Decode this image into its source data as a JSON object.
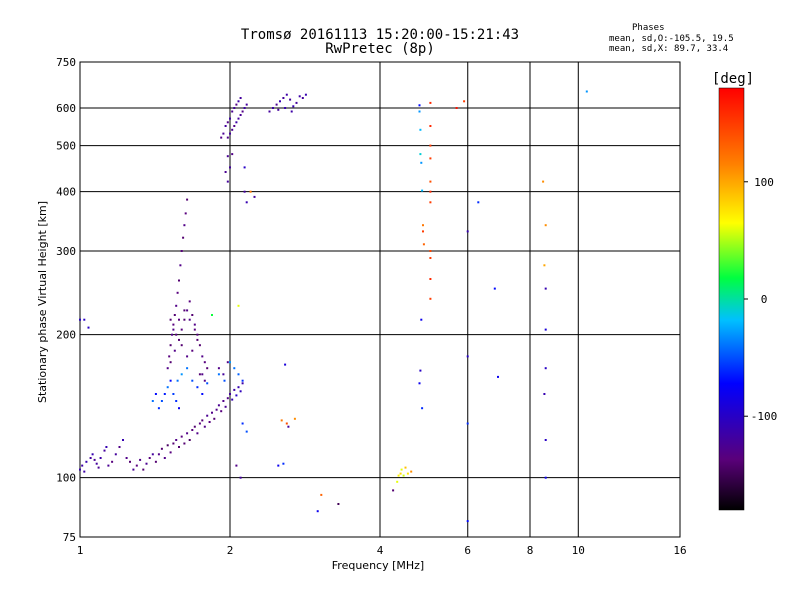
{
  "header": {
    "title": "Tromsø 20161113 15:20:00-15:21:43",
    "subtitle": "RwPretec (8p)"
  },
  "phases": {
    "heading": "Phases",
    "line_o": "mean, sd,O:-105.5, 19.5",
    "line_x": "mean, sd,X: 89.7, 33.4"
  },
  "chart_data": {
    "type": "scatter",
    "title": "Tromsø 20161113 15:20:00-15:21:43",
    "subtitle": "RwPretec (8p)",
    "xlabel": "Frequency [MHz]",
    "ylabel": "Stationary phase Virtual Height [km]",
    "xscale": "log",
    "yscale": "log",
    "xlim": [
      1,
      16
    ],
    "ylim": [
      75,
      750
    ],
    "xticks": [
      1,
      2,
      4,
      6,
      8,
      10,
      16
    ],
    "xtick_labels": [
      "1",
      "2",
      "4",
      "6",
      "8",
      "10",
      "16"
    ],
    "yticks": [
      75,
      100,
      200,
      300,
      400,
      500,
      600,
      750
    ],
    "ytick_labels": [
      "75",
      "100",
      "200",
      "300",
      "400",
      "500",
      "600",
      "750"
    ],
    "grid": true,
    "colorbar": {
      "label": "[deg]",
      "min": -180,
      "max": 180,
      "ticks": [
        100,
        0,
        -100
      ],
      "tick_labels": [
        "100",
        "0",
        "-100"
      ]
    },
    "colors": {
      "background": "#ffffff",
      "grid": "#000000"
    },
    "points": [
      [
        1.0,
        215,
        -100
      ],
      [
        1.02,
        215,
        -100
      ],
      [
        1.04,
        207,
        -100
      ],
      [
        1.0,
        104,
        -110
      ],
      [
        1.01,
        106,
        -115
      ],
      [
        1.02,
        103,
        -115
      ],
      [
        1.03,
        108,
        -110
      ],
      [
        1.05,
        110,
        -120
      ],
      [
        1.06,
        112,
        -110
      ],
      [
        1.07,
        109,
        -125
      ],
      [
        1.08,
        107,
        -120
      ],
      [
        1.09,
        105,
        -125
      ],
      [
        1.1,
        110,
        -115
      ],
      [
        1.12,
        114,
        -120
      ],
      [
        1.13,
        116,
        -110
      ],
      [
        1.14,
        106,
        -125
      ],
      [
        1.16,
        108,
        -135
      ],
      [
        1.18,
        112,
        -120
      ],
      [
        1.2,
        116,
        -130
      ],
      [
        1.22,
        120,
        -110
      ],
      [
        1.24,
        110,
        -130
      ],
      [
        1.26,
        108,
        -140
      ],
      [
        1.28,
        104,
        -125
      ],
      [
        1.3,
        106,
        -135
      ],
      [
        1.32,
        109,
        -130
      ],
      [
        1.34,
        104,
        -140
      ],
      [
        1.36,
        107,
        -125
      ],
      [
        1.38,
        110,
        -135
      ],
      [
        1.4,
        112,
        -120
      ],
      [
        1.42,
        108,
        -140
      ],
      [
        1.44,
        112,
        -130
      ],
      [
        1.46,
        115,
        -140
      ],
      [
        1.48,
        110,
        -130
      ],
      [
        1.5,
        117,
        -145
      ],
      [
        1.52,
        113,
        -135
      ],
      [
        1.54,
        118,
        -140
      ],
      [
        1.56,
        120,
        -130
      ],
      [
        1.58,
        116,
        -140
      ],
      [
        1.6,
        122,
        -135
      ],
      [
        1.62,
        118,
        -140
      ],
      [
        1.64,
        124,
        -130
      ],
      [
        1.66,
        120,
        -145
      ],
      [
        1.68,
        126,
        -135
      ],
      [
        1.7,
        128,
        -140
      ],
      [
        1.72,
        124,
        -130
      ],
      [
        1.74,
        130,
        -135
      ],
      [
        1.76,
        132,
        -140
      ],
      [
        1.78,
        128,
        -130
      ],
      [
        1.8,
        135,
        -125
      ],
      [
        1.82,
        131,
        -135
      ],
      [
        1.84,
        137,
        -130
      ],
      [
        1.86,
        133,
        -140
      ],
      [
        1.88,
        139,
        -130
      ],
      [
        1.9,
        142,
        -125
      ],
      [
        1.92,
        138,
        -135
      ],
      [
        1.94,
        145,
        -130
      ],
      [
        1.96,
        141,
        -125
      ],
      [
        1.98,
        147,
        -130
      ],
      [
        2.0,
        150,
        -120
      ],
      [
        2.02,
        146,
        -110
      ],
      [
        2.04,
        153,
        -115
      ],
      [
        2.06,
        149,
        -100
      ],
      [
        2.08,
        155,
        -110
      ],
      [
        2.1,
        152,
        -105
      ],
      [
        2.12,
        158,
        -115
      ],
      [
        1.44,
        140,
        -60
      ],
      [
        1.46,
        145,
        -50
      ],
      [
        1.48,
        150,
        -65
      ],
      [
        1.5,
        155,
        -40
      ],
      [
        1.52,
        160,
        -70
      ],
      [
        1.54,
        150,
        -55
      ],
      [
        1.56,
        145,
        -60
      ],
      [
        1.58,
        140,
        -80
      ],
      [
        1.4,
        145,
        -40
      ],
      [
        1.42,
        150,
        -70
      ],
      [
        1.5,
        170,
        -130
      ],
      [
        1.51,
        180,
        -135
      ],
      [
        1.52,
        190,
        -140
      ],
      [
        1.53,
        200,
        -130
      ],
      [
        1.54,
        210,
        -135
      ],
      [
        1.55,
        220,
        -140
      ],
      [
        1.56,
        230,
        -130
      ],
      [
        1.57,
        245,
        -135
      ],
      [
        1.58,
        260,
        -140
      ],
      [
        1.59,
        280,
        -130
      ],
      [
        1.6,
        300,
        -135
      ],
      [
        1.61,
        320,
        -140
      ],
      [
        1.62,
        340,
        -130
      ],
      [
        1.63,
        360,
        -135
      ],
      [
        1.64,
        385,
        -140
      ],
      [
        1.52,
        175,
        -140
      ],
      [
        1.55,
        185,
        -130
      ],
      [
        1.58,
        195,
        -140
      ],
      [
        1.6,
        205,
        -135
      ],
      [
        1.62,
        215,
        -140
      ],
      [
        1.64,
        225,
        -130
      ],
      [
        1.66,
        235,
        -135
      ],
      [
        1.68,
        220,
        -140
      ],
      [
        1.7,
        210,
        -130
      ],
      [
        1.72,
        200,
        -135
      ],
      [
        1.74,
        190,
        -140
      ],
      [
        1.76,
        180,
        -130
      ],
      [
        1.78,
        175,
        -135
      ],
      [
        1.8,
        170,
        -140
      ],
      [
        1.56,
        200,
        -135
      ],
      [
        1.6,
        190,
        -140
      ],
      [
        1.64,
        180,
        -130
      ],
      [
        1.68,
        185,
        -135
      ],
      [
        1.72,
        195,
        -140
      ],
      [
        1.76,
        165,
        -130
      ],
      [
        1.52,
        215,
        -140
      ],
      [
        1.54,
        205,
        -130
      ],
      [
        1.58,
        215,
        -135
      ],
      [
        1.62,
        225,
        -140
      ],
      [
        1.66,
        215,
        -130
      ],
      [
        1.7,
        205,
        -135
      ],
      [
        1.74,
        165,
        -140
      ],
      [
        1.78,
        160,
        -130
      ],
      [
        1.57,
        160,
        -40
      ],
      [
        1.6,
        165,
        -30
      ],
      [
        1.64,
        170,
        -40
      ],
      [
        1.68,
        160,
        -50
      ],
      [
        1.72,
        155,
        -60
      ],
      [
        1.76,
        150,
        -70
      ],
      [
        1.8,
        158,
        -50
      ],
      [
        1.84,
        220,
        20
      ],
      [
        1.9,
        165,
        -40
      ],
      [
        1.95,
        160,
        -50
      ],
      [
        2.0,
        175,
        -30
      ],
      [
        2.04,
        170,
        -40
      ],
      [
        2.08,
        165,
        -45
      ],
      [
        2.12,
        160,
        -60
      ],
      [
        1.9,
        170,
        -130
      ],
      [
        1.94,
        165,
        -120
      ],
      [
        1.98,
        175,
        -130
      ],
      [
        1.98,
        420,
        -120
      ],
      [
        1.96,
        440,
        -125
      ],
      [
        2.0,
        450,
        -120
      ],
      [
        1.98,
        475,
        -125
      ],
      [
        2.02,
        480,
        -130
      ],
      [
        1.98,
        520,
        -130
      ],
      [
        2.0,
        530,
        -120
      ],
      [
        2.02,
        540,
        -125
      ],
      [
        2.04,
        550,
        -130
      ],
      [
        2.06,
        560,
        -115
      ],
      [
        2.08,
        570,
        -120
      ],
      [
        2.1,
        580,
        -125
      ],
      [
        2.12,
        590,
        -130
      ],
      [
        2.14,
        600,
        -115
      ],
      [
        2.16,
        610,
        -120
      ],
      [
        1.92,
        520,
        -130
      ],
      [
        1.94,
        530,
        -125
      ],
      [
        1.96,
        550,
        -120
      ],
      [
        1.98,
        560,
        -130
      ],
      [
        2.0,
        570,
        -115
      ],
      [
        2.02,
        590,
        -125
      ],
      [
        2.04,
        600,
        -120
      ],
      [
        2.06,
        610,
        -130
      ],
      [
        2.08,
        620,
        -115
      ],
      [
        2.1,
        630,
        -120
      ],
      [
        2.4,
        590,
        -120
      ],
      [
        2.44,
        600,
        -115
      ],
      [
        2.48,
        610,
        -125
      ],
      [
        2.52,
        620,
        -110
      ],
      [
        2.56,
        630,
        -120
      ],
      [
        2.6,
        640,
        -115
      ],
      [
        2.64,
        625,
        -120
      ],
      [
        2.68,
        605,
        -110
      ],
      [
        2.72,
        615,
        -120
      ],
      [
        2.76,
        635,
        -115
      ],
      [
        2.8,
        630,
        -120
      ],
      [
        2.84,
        640,
        -110
      ],
      [
        2.5,
        595,
        -120
      ],
      [
        2.58,
        600,
        -110
      ],
      [
        2.66,
        590,
        -115
      ],
      [
        2.14,
        450,
        -100
      ],
      [
        2.2,
        400,
        120
      ],
      [
        2.24,
        390,
        -120
      ],
      [
        2.16,
        380,
        -110
      ],
      [
        2.14,
        400,
        -120
      ],
      [
        2.08,
        230,
        60
      ],
      [
        2.12,
        130,
        -60
      ],
      [
        2.16,
        125,
        -50
      ],
      [
        2.06,
        106,
        -130
      ],
      [
        2.1,
        100,
        -120
      ],
      [
        2.5,
        106,
        -80
      ],
      [
        2.56,
        107,
        -60
      ],
      [
        2.54,
        132,
        120
      ],
      [
        2.6,
        130,
        140
      ],
      [
        2.62,
        128,
        -120
      ],
      [
        2.7,
        133,
        110
      ],
      [
        2.58,
        173,
        -90
      ],
      [
        3.0,
        85,
        -80
      ],
      [
        3.05,
        92,
        130
      ],
      [
        3.3,
        88,
        -150
      ],
      [
        4.33,
        98,
        60
      ],
      [
        4.36,
        101,
        70
      ],
      [
        4.4,
        102,
        80
      ],
      [
        4.42,
        104,
        60
      ],
      [
        4.46,
        101,
        55
      ],
      [
        4.5,
        105,
        90
      ],
      [
        4.55,
        102,
        75
      ],
      [
        4.62,
        103,
        110
      ],
      [
        4.25,
        94,
        -140
      ],
      [
        4.8,
        608,
        -70
      ],
      [
        4.8,
        590,
        -30
      ],
      [
        4.82,
        540,
        -20
      ],
      [
        4.82,
        480,
        -10
      ],
      [
        4.84,
        460,
        -30
      ],
      [
        4.86,
        402,
        -20
      ],
      [
        4.88,
        330,
        150
      ],
      [
        4.9,
        310,
        130
      ],
      [
        4.88,
        340,
        120
      ],
      [
        4.84,
        215,
        -80
      ],
      [
        4.82,
        168,
        -100
      ],
      [
        4.8,
        158,
        -80
      ],
      [
        4.86,
        140,
        -60
      ],
      [
        5.05,
        615,
        160
      ],
      [
        5.05,
        550,
        160
      ],
      [
        5.05,
        500,
        150
      ],
      [
        5.05,
        470,
        150
      ],
      [
        5.05,
        420,
        140
      ],
      [
        5.05,
        400,
        160
      ],
      [
        5.05,
        380,
        150
      ],
      [
        5.05,
        300,
        145
      ],
      [
        5.05,
        290,
        150
      ],
      [
        5.05,
        262,
        160
      ],
      [
        5.05,
        238,
        150
      ],
      [
        5.7,
        600,
        170
      ],
      [
        5.9,
        620,
        150
      ],
      [
        6.0,
        330,
        -110
      ],
      [
        6.0,
        180,
        -100
      ],
      [
        6.0,
        130,
        -60
      ],
      [
        6.0,
        81,
        -70
      ],
      [
        6.3,
        380,
        -60
      ],
      [
        6.8,
        250,
        -70
      ],
      [
        6.9,
        163,
        -80
      ],
      [
        8.5,
        420,
        110
      ],
      [
        8.6,
        340,
        110
      ],
      [
        8.55,
        280,
        100
      ],
      [
        8.6,
        250,
        -110
      ],
      [
        8.6,
        205,
        -90
      ],
      [
        8.6,
        170,
        -100
      ],
      [
        8.55,
        150,
        -110
      ],
      [
        8.6,
        120,
        -100
      ],
      [
        8.6,
        100,
        -80
      ],
      [
        10.4,
        650,
        -30
      ]
    ]
  }
}
